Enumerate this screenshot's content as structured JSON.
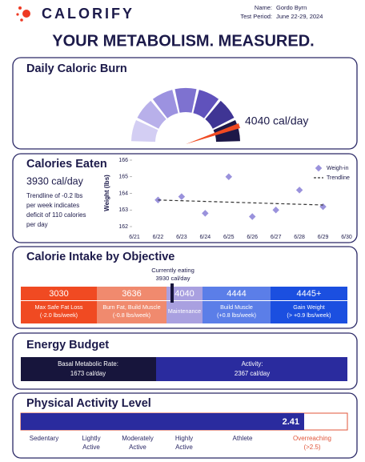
{
  "header": {
    "brand": "CALORIFY",
    "name_label": "Name:",
    "name": "Gordo Byrn",
    "period_label": "Test Period:",
    "period": "June 22-29, 2024",
    "title": "YOUR METABOLISM. MEASURED."
  },
  "daily_burn": {
    "title": "Daily Caloric Burn",
    "value": "4040 cal/day"
  },
  "calories_eaten": {
    "title": "Calories Eaten",
    "value": "3930 cal/day",
    "note": [
      "Trendline of -0.2 lbs",
      "per week indicates",
      "deficit of 110 calories",
      "per day"
    ]
  },
  "chart_data": {
    "type": "scatter",
    "y_label": "Weight (lbs)",
    "ylim": [
      162,
      166
    ],
    "yticks": [
      162,
      163,
      164,
      165,
      166
    ],
    "xticks": [
      "6/21",
      "6/22",
      "6/23",
      "6/24",
      "6/25",
      "6/26",
      "6/27",
      "6/28",
      "6/29",
      "6/30"
    ],
    "series": [
      {
        "name": "Weigh-in",
        "color": "#9a92dc",
        "x": [
          "6/22",
          "6/23",
          "6/24",
          "6/25",
          "6/26",
          "6/27",
          "6/28",
          "6/29"
        ],
        "values": [
          163.6,
          163.8,
          162.8,
          165.0,
          162.6,
          163.0,
          164.2,
          163.2
        ]
      },
      {
        "name": "Trendline",
        "color": "#333333",
        "line_style": "dashed",
        "x": [
          "6/22",
          "6/29"
        ],
        "values": [
          163.6,
          163.3
        ]
      }
    ]
  },
  "intake": {
    "title": "Calorie Intake by Objective",
    "current": [
      "Currently eating",
      "3930 cal/day"
    ],
    "segments": [
      {
        "value": "3030",
        "label": [
          "Max Safe Fat Loss",
          "(-2.0 lbs/week)"
        ]
      },
      {
        "value": "3636",
        "label": [
          "Burn Fat, Build Muscle",
          "(-0.8 lbs/week)"
        ]
      },
      {
        "value": "4040",
        "label": [
          "Maintenance"
        ]
      },
      {
        "value": "4444",
        "label": [
          "Build Muscle",
          "(+0.8 lbs/week)"
        ]
      },
      {
        "value": "4445+",
        "label": [
          "Gain Weight",
          "(> +0.9 lbs/week)"
        ]
      }
    ]
  },
  "energy_budget": {
    "title": "Energy Budget",
    "bmr_label": "Basal Metabolic Rate:",
    "bmr": "1673 cal/day",
    "activity_label": "Activity:",
    "activity": "2367 cal/day"
  },
  "activity_level": {
    "title": "Physical Activity Level",
    "value": "2.41",
    "levels": [
      [
        "Sedentary"
      ],
      [
        "Lightly",
        "Active"
      ],
      [
        "Moderately",
        "Active"
      ],
      [
        "Highly",
        "Active"
      ],
      [
        "Athlete"
      ],
      [
        "Overreaching",
        "(>2.5)"
      ]
    ]
  }
}
